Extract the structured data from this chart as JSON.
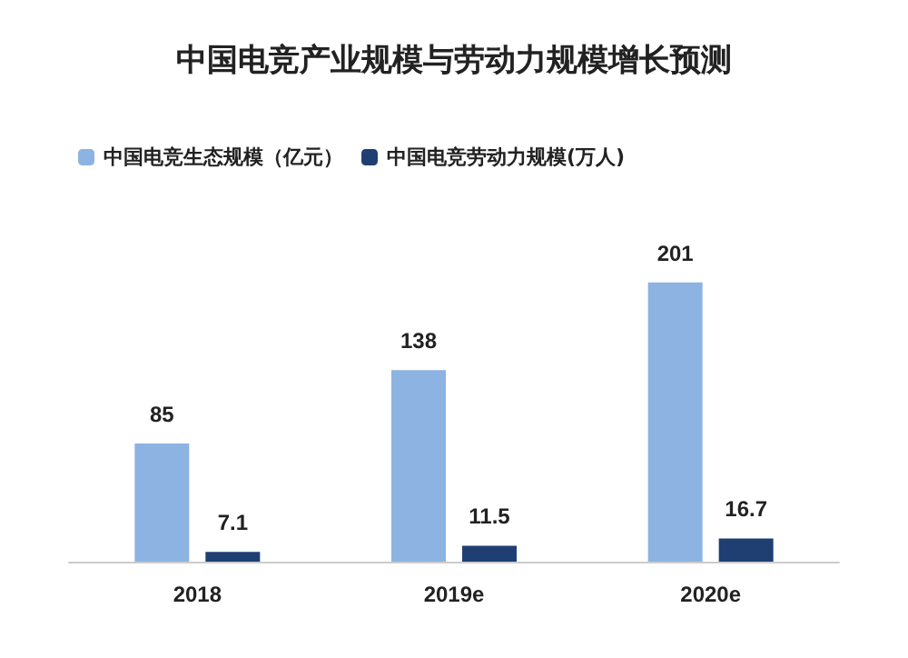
{
  "chart_data": {
    "type": "bar",
    "title": "中国电竞产业规模与劳动力规模增长预测",
    "categories": [
      "2018",
      "2019e",
      "2020e"
    ],
    "series": [
      {
        "name": "中国电竞生态规模（亿元）",
        "color": "#8db3e2",
        "values": [
          85,
          138,
          201
        ]
      },
      {
        "name": "中国电竞劳动力规模(万人)",
        "color": "#1f3f73",
        "values": [
          7.1,
          11.5,
          16.7
        ]
      }
    ],
    "data_labels": true,
    "legend": "top left"
  }
}
